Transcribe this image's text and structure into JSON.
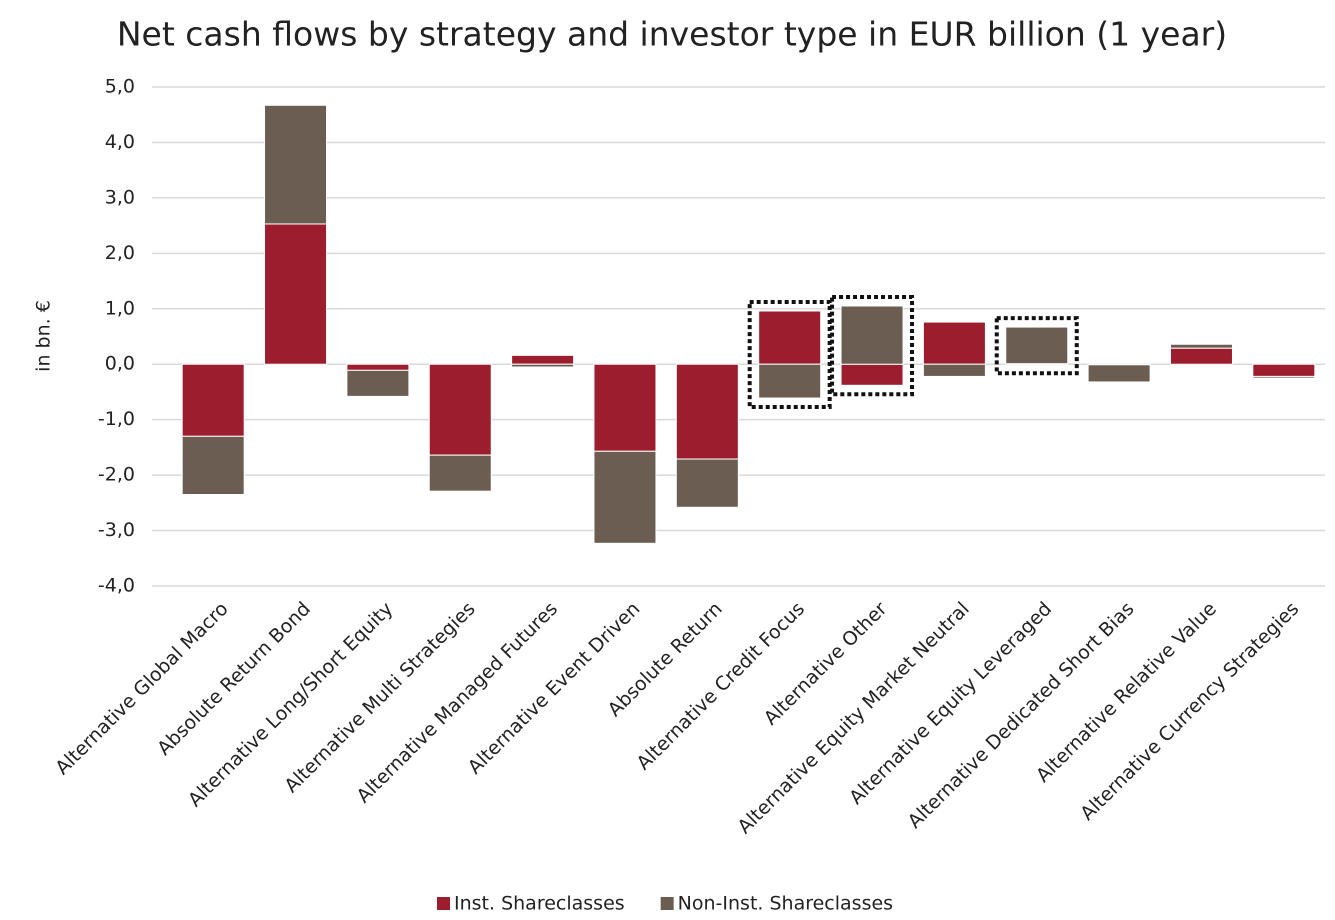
{
  "chart_data": {
    "type": "stacked_bar",
    "title": "Net cash flows by strategy and investor type in EUR billion (1 year)",
    "y_label": "in bn. €",
    "categories": [
      "Alternative Global Macro",
      "Absolute Return Bond",
      "Alternative Long/Short Equity",
      "Alternative Multi Strategies",
      "Alternative Managed Futures",
      "Alternative Event Driven",
      "Absolute Return",
      "Alternative Credit Focus",
      "Alternative Other",
      "Alternative Equity Market Neutral",
      "Alternative Equity Leveraged",
      "Alternative Dedicated Short Bias",
      "Alternative Relative Value",
      "Alternative Currency Strategies"
    ],
    "series": [
      {
        "name": "Inst. Shareclasses",
        "color": "#9b1d2e",
        "values": [
          -1.3,
          2.53,
          -0.11,
          -1.64,
          0.16,
          -1.57,
          -1.71,
          0.96,
          -0.38,
          0.76,
          0.01,
          -0.01,
          0.29,
          -0.22
        ]
      },
      {
        "name": "Non-Inst. Shareclasses",
        "color": "#6b5d51",
        "values": [
          -1.05,
          2.14,
          -0.47,
          -0.65,
          -0.05,
          -1.66,
          -0.87,
          -0.61,
          1.05,
          -0.22,
          0.66,
          -0.31,
          0.07,
          -0.03
        ]
      }
    ],
    "ylim": [
      -4,
      5
    ],
    "yticks": [
      {
        "value": 5,
        "label": "5,0"
      },
      {
        "value": 4,
        "label": "4,0"
      },
      {
        "value": 3,
        "label": "3,0"
      },
      {
        "value": 2,
        "label": "2,0"
      },
      {
        "value": 1,
        "label": "1,0"
      },
      {
        "value": 0,
        "label": "0,0"
      },
      {
        "value": -1,
        "label": "-1,0"
      },
      {
        "value": -2,
        "label": "-2,0"
      },
      {
        "value": -3,
        "label": "-3,0"
      },
      {
        "value": -4,
        "label": "-4,0"
      }
    ],
    "grid": true,
    "highlight": [
      7,
      8,
      10
    ],
    "legend": "bottom"
  }
}
